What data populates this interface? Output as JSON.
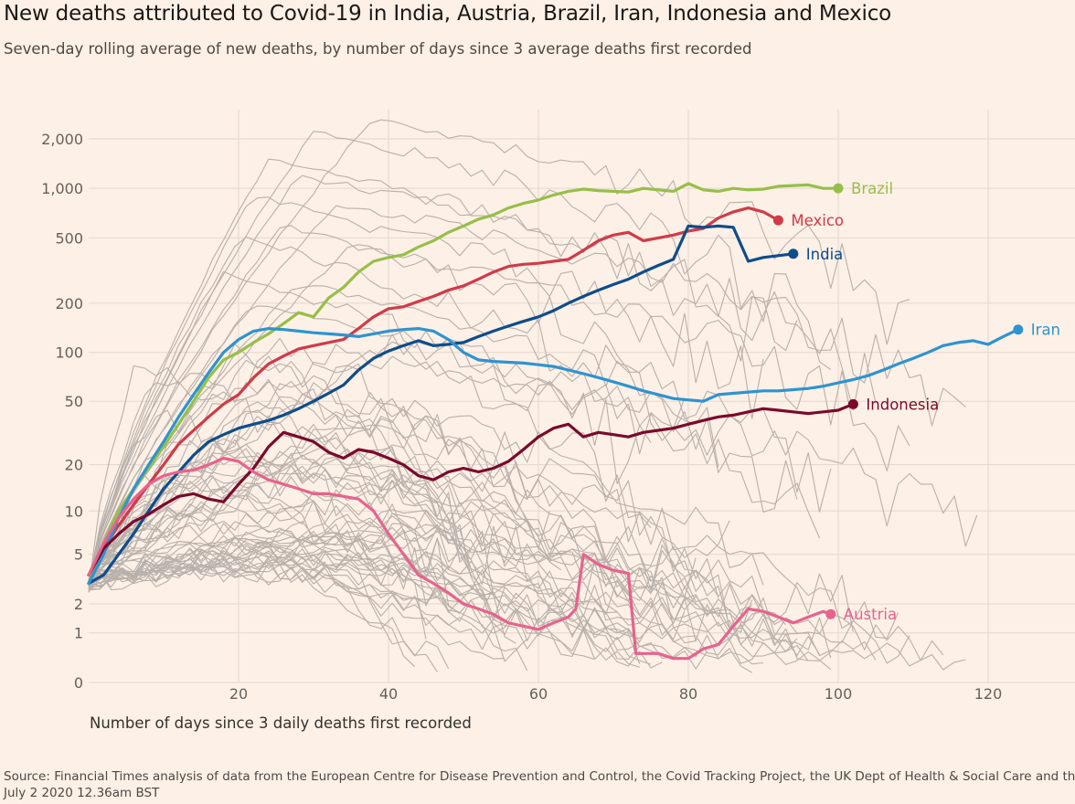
{
  "header": {
    "title": "New deaths attributed to Covid-19 in India, Austria, Brazil, Iran, Indonesia and Mexico",
    "subtitle": "Seven-day rolling average of new deaths, by number of days since 3 average deaths first recorded"
  },
  "footer": {
    "source": "Source: Financial Times analysis of data from the European Centre for Disease Prevention and Control, the Covid Tracking Project, the UK Dept of Health & Social Care and the S",
    "timestamp": "July 2 2020 12.36am BST"
  },
  "chart_data": {
    "type": "line",
    "title": "New deaths attributed to Covid-19 in India, Austria, Brazil, Iran, Indonesia and Mexico",
    "subtitle": "Seven-day rolling average of new deaths, by number of days since 3 average deaths first recorded",
    "xlabel": "Number of days since 3 daily deaths first recorded",
    "ylabel": "",
    "y_scale": "log",
    "xlim": [
      0,
      125
    ],
    "x_ticks": [
      20,
      40,
      60,
      80,
      100,
      120
    ],
    "x_tick_labels": [
      "20",
      "40",
      "60",
      "80",
      "100",
      "120"
    ],
    "y_ticks": [
      0,
      1,
      2,
      5,
      10,
      20,
      50,
      100,
      200,
      500,
      1000,
      2000
    ],
    "y_tick_labels": [
      "0",
      "1",
      "2",
      "5",
      "10",
      "20",
      "50",
      "100",
      "200",
      "500",
      "1,000",
      "2,000"
    ],
    "grid": true,
    "colors": {
      "background": "#fdf0e6",
      "grid": "#e3d8cf",
      "background_lines": "#b8b0aa",
      "Brazil": "#96bf48",
      "Mexico": "#d13a48",
      "India": "#0d4d8c",
      "Iran": "#2e93d1",
      "Indonesia": "#7a0a2c",
      "Austria": "#e8628d"
    },
    "series": [
      {
        "name": "Brazil",
        "x": [
          0,
          2,
          4,
          6,
          8,
          10,
          12,
          14,
          16,
          18,
          20,
          22,
          24,
          26,
          28,
          30,
          32,
          34,
          36,
          38,
          40,
          42,
          44,
          46,
          48,
          50,
          52,
          54,
          56,
          58,
          60,
          62,
          64,
          66,
          68,
          70,
          72,
          74,
          76,
          78,
          80,
          82,
          84,
          86,
          88,
          90,
          92,
          94,
          96,
          98,
          100
        ],
        "y": [
          3,
          6,
          10,
          14,
          19,
          26,
          36,
          50,
          70,
          90,
          100,
          115,
          130,
          150,
          175,
          165,
          215,
          250,
          310,
          360,
          380,
          395,
          440,
          480,
          540,
          590,
          650,
          690,
          760,
          810,
          850,
          910,
          960,
          990,
          970,
          960,
          950,
          1000,
          980,
          960,
          1070,
          980,
          960,
          1000,
          980,
          990,
          1030,
          1040,
          1050,
          1000,
          1000
        ]
      },
      {
        "name": "Mexico",
        "x": [
          0,
          2,
          4,
          6,
          8,
          10,
          12,
          14,
          16,
          18,
          20,
          22,
          24,
          26,
          28,
          30,
          32,
          34,
          36,
          38,
          40,
          42,
          44,
          46,
          48,
          50,
          52,
          54,
          56,
          58,
          60,
          62,
          64,
          66,
          68,
          70,
          72,
          74,
          76,
          78,
          80,
          82,
          84,
          86,
          88,
          90,
          92
        ],
        "y": [
          3.5,
          5.5,
          8,
          11,
          15,
          20,
          27,
          33,
          40,
          48,
          55,
          70,
          85,
          95,
          105,
          110,
          115,
          120,
          140,
          165,
          185,
          190,
          205,
          220,
          240,
          255,
          280,
          310,
          335,
          345,
          350,
          360,
          370,
          420,
          480,
          520,
          540,
          480,
          500,
          520,
          550,
          570,
          660,
          720,
          760,
          720,
          640
        ]
      },
      {
        "name": "India",
        "x": [
          0,
          2,
          4,
          6,
          8,
          10,
          12,
          14,
          16,
          18,
          20,
          22,
          24,
          26,
          28,
          30,
          32,
          34,
          36,
          38,
          40,
          42,
          44,
          46,
          48,
          50,
          52,
          54,
          56,
          58,
          60,
          62,
          64,
          66,
          68,
          70,
          72,
          74,
          76,
          78,
          80,
          82,
          84,
          86,
          88,
          90,
          92,
          94
        ],
        "y": [
          3,
          3.5,
          5,
          7,
          10,
          14,
          18,
          23,
          28,
          31,
          34,
          36,
          38,
          41,
          45,
          50,
          56,
          63,
          78,
          92,
          102,
          110,
          118,
          110,
          112,
          115,
          125,
          135,
          145,
          155,
          165,
          180,
          200,
          220,
          240,
          260,
          280,
          310,
          340,
          370,
          590,
          580,
          590,
          580,
          360,
          380,
          390,
          400
        ]
      },
      {
        "name": "Iran",
        "x": [
          0,
          2,
          4,
          6,
          8,
          10,
          12,
          14,
          16,
          18,
          20,
          22,
          24,
          26,
          28,
          30,
          32,
          34,
          36,
          38,
          40,
          42,
          44,
          46,
          48,
          50,
          52,
          54,
          56,
          58,
          60,
          62,
          64,
          66,
          68,
          70,
          72,
          74,
          76,
          78,
          80,
          82,
          84,
          86,
          88,
          90,
          92,
          94,
          96,
          98,
          100,
          102,
          104,
          106,
          108,
          110,
          112,
          114,
          116,
          118,
          120,
          122,
          124
        ],
        "y": [
          3,
          5,
          9,
          14,
          20,
          28,
          40,
          55,
          75,
          100,
          120,
          135,
          140,
          138,
          135,
          132,
          130,
          128,
          125,
          130,
          135,
          138,
          140,
          135,
          120,
          100,
          90,
          88,
          87,
          86,
          84,
          82,
          78,
          74,
          70,
          66,
          62,
          58,
          55,
          52,
          51,
          50,
          55,
          56,
          57,
          58,
          58,
          59,
          60,
          62,
          65,
          68,
          72,
          78,
          85,
          92,
          100,
          110,
          115,
          118,
          112,
          125,
          138
        ]
      },
      {
        "name": "Indonesia",
        "x": [
          0,
          2,
          4,
          6,
          8,
          10,
          12,
          14,
          16,
          18,
          20,
          22,
          24,
          26,
          28,
          30,
          32,
          34,
          36,
          38,
          40,
          42,
          44,
          46,
          48,
          50,
          52,
          54,
          56,
          58,
          60,
          62,
          64,
          66,
          68,
          70,
          72,
          74,
          76,
          78,
          80,
          82,
          84,
          86,
          88,
          90,
          92,
          94,
          96,
          98,
          100,
          102
        ],
        "y": [
          3.5,
          5.5,
          7,
          8.5,
          9.5,
          11,
          12.5,
          13,
          12,
          11.5,
          15,
          19,
          26,
          32,
          30,
          28,
          24,
          22,
          25,
          24,
          22,
          20,
          17,
          16,
          18,
          19,
          18,
          19,
          21,
          25,
          30,
          34,
          36,
          30,
          32,
          31,
          30,
          32,
          33,
          34,
          36,
          38,
          40,
          41,
          43,
          45,
          44,
          43,
          42,
          43,
          44,
          48
        ]
      },
      {
        "name": "Austria",
        "x": [
          0,
          2,
          4,
          6,
          8,
          10,
          12,
          14,
          16,
          18,
          20,
          22,
          24,
          26,
          28,
          30,
          32,
          34,
          36,
          38,
          40,
          42,
          44,
          46,
          48,
          50,
          52,
          54,
          56,
          58,
          60,
          62,
          64,
          65,
          66,
          68,
          70,
          72,
          73,
          74,
          76,
          78,
          80,
          82,
          84,
          86,
          88,
          90,
          92,
          94,
          96,
          98,
          99
        ],
        "y": [
          3.5,
          6,
          9,
          12,
          15,
          17,
          18,
          18.5,
          20,
          22,
          21,
          18,
          16,
          15,
          14,
          13,
          13,
          12.5,
          12,
          10,
          7,
          5,
          3.5,
          3,
          2.5,
          2,
          1.8,
          1.6,
          1.3,
          1.2,
          1.1,
          1.3,
          1.5,
          1.8,
          5,
          4.2,
          3.8,
          3.6,
          0.5,
          0.5,
          0.5,
          0.4,
          0.4,
          0.6,
          0.7,
          1.2,
          1.8,
          1.7,
          1.5,
          1.3,
          1.5,
          1.7,
          1.6
        ]
      }
    ]
  }
}
